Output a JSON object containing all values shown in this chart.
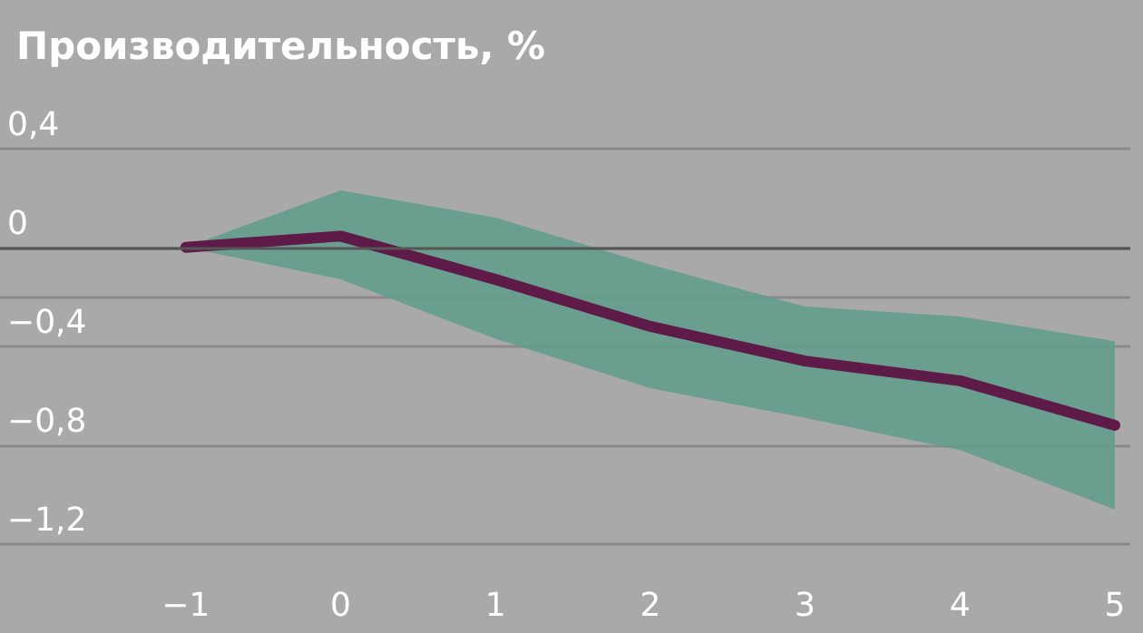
{
  "chart_data": {
    "type": "line",
    "title": "Производительность, %",
    "x": [
      -1,
      0,
      1,
      2,
      3,
      4,
      5
    ],
    "series": [
      {
        "color": "#5e1a48",
        "values": [
          0,
          0.045,
          -0.13,
          -0.32,
          -0.46,
          -0.54,
          -0.72
        ],
        "lower": [
          0,
          -0.13,
          -0.37,
          -0.57,
          -0.69,
          -0.82,
          -1.06
        ],
        "upper": [
          0,
          0.23,
          0.12,
          -0.07,
          -0.24,
          -0.28,
          -0.38
        ]
      }
    ],
    "xlim": [
      -2.2,
      5.1
    ],
    "xticks": [
      -1,
      0,
      1,
      2,
      3,
      4,
      5
    ],
    "ylim": [
      -1.56,
      1.0
    ],
    "yticks": [
      {
        "value": 0.4,
        "label": "0,4"
      },
      {
        "value": 0,
        "label": "0"
      },
      {
        "value": -0.2,
        "label": null
      },
      {
        "value": -0.4,
        "label": "−0,4"
      },
      {
        "value": -0.8,
        "label": "−0,8"
      },
      {
        "value": -1.2,
        "label": "−1,2"
      }
    ],
    "ref_lines": [
      {
        "axis": "y",
        "value": 0,
        "color": "#555555"
      }
    ],
    "grid": "y",
    "marker": "none",
    "line_style": "solid"
  }
}
